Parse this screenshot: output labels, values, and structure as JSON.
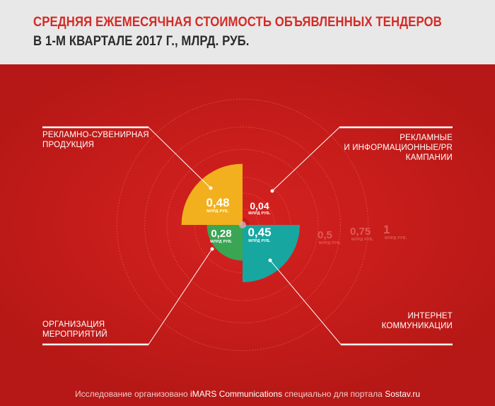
{
  "header": {
    "title_line1": "СРЕДНЯЯ ЕЖЕМЕСЯЧНАЯ СТОИМОСТЬ ОБЪЯВЛЕННЫХ ТЕНДЕРОВ",
    "title_line2": "В 1-М КВАРТАЛЕ 2017 Г., МЛРД. РУБ."
  },
  "colors": {
    "background": "#c71d1b",
    "title_accent": "#d42b25",
    "slice_yellow": "#f2b01e",
    "slice_green": "#3aa654",
    "slice_teal": "#17a6a0",
    "slice_red": "#c41a18",
    "scale_text": "#e15a55"
  },
  "chart_data": {
    "type": "polar-area",
    "unit": "МЛРД РУБ.",
    "max_value": 1,
    "scale_ticks": [
      {
        "value": "0,5",
        "unit": "МЛРД РУБ."
      },
      {
        "value": "0,75",
        "unit": "МЛРД РУБ."
      },
      {
        "value": "1",
        "unit": "МЛРД РУБ."
      }
    ],
    "segments": [
      {
        "category": "РЕКЛАМНО-СУВЕНИРНАЯ ПРОДУКЦИЯ",
        "value": 0.48,
        "label": "0,48",
        "unit": "МЛРД РУБ.",
        "quadrant": "top-left",
        "color": "#f2b01e"
      },
      {
        "category": "РЕКЛАМНЫЕ И ИНФОРМАЦИОННЫЕ/PR КАМПАНИИ",
        "value": 0.04,
        "label": "0,04",
        "unit": "МЛРД РУБ.",
        "quadrant": "top-right",
        "color": "#c41a18"
      },
      {
        "category": "ИНТЕРНЕТ КОММУНИКАЦИИ",
        "value": 0.45,
        "label": "0,45",
        "unit": "МЛРД РУБ.",
        "quadrant": "bottom-right",
        "color": "#17a6a0"
      },
      {
        "category": "ОРГАНИЗАЦИЯ МЕРОПРИЯТИЙ",
        "value": 0.28,
        "label": "0,28",
        "unit": "МЛРД РУБ.",
        "quadrant": "bottom-left",
        "color": "#3aa654"
      }
    ]
  },
  "categories": {
    "top_left": [
      "РЕКЛАМНО-СУВЕНИРНАЯ",
      "ПРОДУКЦИЯ"
    ],
    "top_right": [
      "РЕКЛАМНЫЕ",
      "И ИНФОРМАЦИОННЫЕ/PR",
      "КАМПАНИИ"
    ],
    "bottom_left": [
      "ОРГАНИЗАЦИЯ",
      "МЕРОПРИЯТИЙ"
    ],
    "bottom_right": [
      "ИНТЕРНЕТ",
      "КОММУНИКАЦИИ"
    ]
  },
  "footer": {
    "part1": "Исследование организовано ",
    "brand": "iMARS Communications",
    "part2": " специально для портала ",
    "site": "Sostav.ru"
  }
}
